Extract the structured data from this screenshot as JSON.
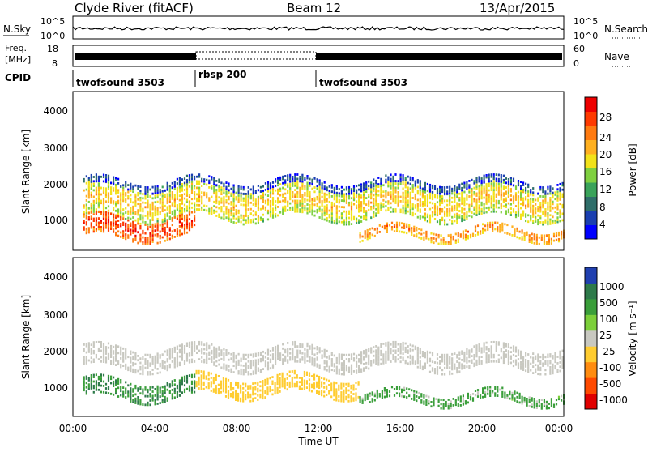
{
  "header": {
    "title": "Clyde River (fitACF)",
    "beam": "Beam 12",
    "date": "13/Apr/2015"
  },
  "nsky_panel": {
    "left_label": "N.Sky",
    "left_ticks": [
      "10^5",
      "10^0"
    ],
    "right_label": "N.Search",
    "right_ticks": [
      "10^5",
      "10^0"
    ]
  },
  "freq_panel": {
    "left_label_1": "Freq.",
    "left_label_2": "[MHz]",
    "left_ticks": [
      "18",
      "8"
    ],
    "right_label": "Nave",
    "right_ticks": [
      "60",
      "0"
    ]
  },
  "cpid": {
    "label": "CPID",
    "segments": [
      {
        "name": "twofsound 3503",
        "start_h": 0,
        "end_h": 6
      },
      {
        "name": "rbsp 200",
        "start_h": 6,
        "end_h": 12
      },
      {
        "name": "twofsound 3503",
        "start_h": 12,
        "end_h": 24
      }
    ]
  },
  "x_axis": {
    "label": "Time UT",
    "ticks": [
      "00:00",
      "04:00",
      "08:00",
      "12:00",
      "16:00",
      "20:00",
      "00:00"
    ]
  },
  "power_panel": {
    "ylabel": "Slant Range [km]",
    "yticks": [
      "1000",
      "2000",
      "3000",
      "4000"
    ],
    "cbar_label": "Power [dB]",
    "cbar_ticks": [
      "28",
      "24",
      "20",
      "16",
      "12",
      "8",
      "4"
    ],
    "cbar_colors": [
      "#0000ff",
      "#1a3fb0",
      "#2f6e6a",
      "#3aa35a",
      "#7fd040",
      "#f2e21a",
      "#ffb020",
      "#ff7a10",
      "#ff3a00",
      "#ee0000"
    ]
  },
  "velocity_panel": {
    "ylabel": "Slant Range [km]",
    "yticks": [
      "1000",
      "2000",
      "3000",
      "4000"
    ],
    "cbar_label": "Velocity [m s⁻¹]",
    "cbar_ticks": [
      "1000",
      "500",
      "100",
      "25",
      "-25",
      "-100",
      "-500",
      "-1000"
    ],
    "cbar_colors": [
      "#2040b0",
      "#2e7a4a",
      "#3a9e3a",
      "#7ccf3a",
      "#c8c8c0",
      "#ffcc30",
      "#ff8c10",
      "#ff4a00",
      "#e00000"
    ]
  },
  "chart_data": {
    "type": "heatmap",
    "x_range_hours": [
      0,
      24
    ],
    "y_range_km": [
      180,
      4600
    ],
    "power_bands": [
      {
        "t0": 0.5,
        "t1": 24,
        "r_center": 1500,
        "r_width": 900,
        "db": 20
      },
      {
        "t0": 0.5,
        "t1": 6,
        "r_center": 800,
        "r_width": 600,
        "db": 28
      },
      {
        "t0": 14,
        "t1": 24,
        "r_center": 650,
        "r_width": 300,
        "db": 24
      },
      {
        "t0": 0.5,
        "t1": 24,
        "r_center": 2000,
        "r_width": 200,
        "db": 8
      }
    ],
    "velocity_regions": [
      {
        "t0": 0.5,
        "t1": 24,
        "r_center": 1800,
        "r_width": 600,
        "v": 0
      },
      {
        "t0": 0.5,
        "t1": 6,
        "r_center": 900,
        "r_width": 500,
        "v": 300
      },
      {
        "t0": 6,
        "t1": 14,
        "r_center": 1000,
        "r_width": 500,
        "v": -150
      },
      {
        "t0": 14,
        "t1": 24,
        "r_center": 700,
        "r_width": 300,
        "v": 100
      }
    ]
  }
}
